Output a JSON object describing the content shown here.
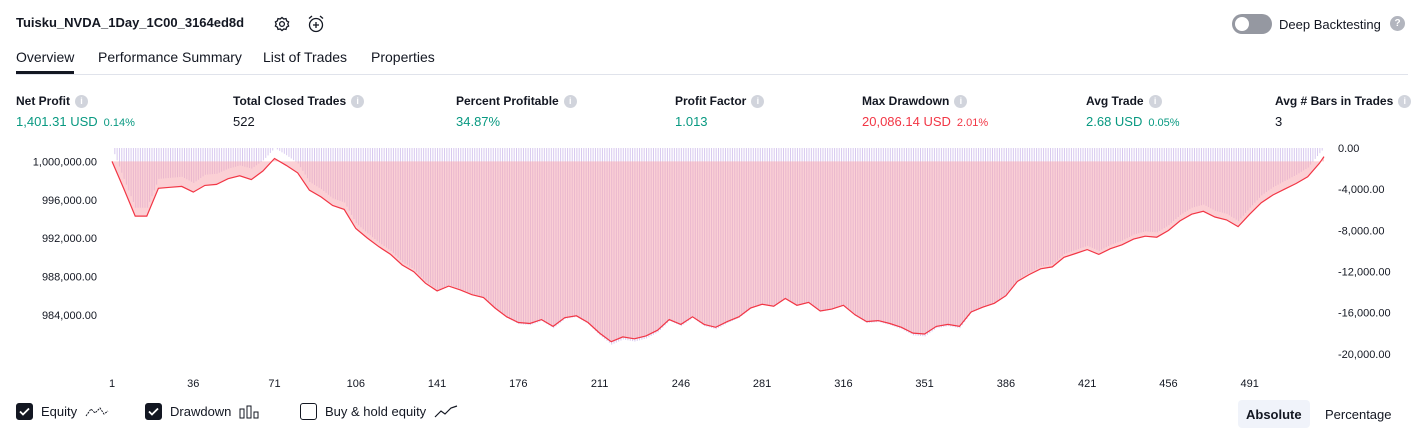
{
  "header": {
    "strategy_title": "Tuisku_NVDA_1Day_1C00_3164ed8d",
    "deep_backtesting_label": "Deep Backtesting",
    "help_glyph": "?"
  },
  "tabs": [
    "Overview",
    "Performance Summary",
    "List of Trades",
    "Properties"
  ],
  "metrics": [
    {
      "label": "Net Profit",
      "value": "1,401.31 USD",
      "pct": "0.14%",
      "color": "green"
    },
    {
      "label": "Total Closed Trades",
      "value": "522",
      "pct": "",
      "color": "dark"
    },
    {
      "label": "Percent Profitable",
      "value": "34.87%",
      "pct": "",
      "color": "green"
    },
    {
      "label": "Profit Factor",
      "value": "1.013",
      "pct": "",
      "color": "green"
    },
    {
      "label": "Max Drawdown",
      "value": "20,086.14 USD",
      "pct": "2.01%",
      "color": "red"
    },
    {
      "label": "Avg Trade",
      "value": "2.68 USD",
      "pct": "0.05%",
      "color": "green"
    },
    {
      "label": "Avg # Bars in Trades",
      "value": "3",
      "pct": "",
      "color": "dark"
    }
  ],
  "legend": {
    "equity": "Equity",
    "drawdown": "Drawdown",
    "buy_hold": "Buy & hold equity",
    "equity_checked": true,
    "drawdown_checked": true,
    "buy_hold_checked": false
  },
  "modes": {
    "absolute": "Absolute",
    "percentage": "Percentage",
    "selected": "absolute"
  },
  "colors": {
    "equity_line": "#f23645",
    "equity_fill": "#f7a9b3",
    "drawdown_bar": "#c9b6ea",
    "profit_green": "#089981"
  },
  "chart_data": {
    "type": "area",
    "x_ticks": [
      "1",
      "36",
      "71",
      "106",
      "141",
      "176",
      "211",
      "246",
      "281",
      "316",
      "351",
      "386",
      "421",
      "456",
      "491"
    ],
    "left_axis": {
      "ticks": [
        "1,000,000.00",
        "996,000.00",
        "992,000.00",
        "988,000.00",
        "984,000.00"
      ],
      "range": [
        979500,
        1001400
      ]
    },
    "right_axis": {
      "ticks": [
        "0.00",
        "-4,000.00",
        "-8,000.00",
        "-12,000.00",
        "-16,000.00",
        "-20,000.00"
      ],
      "range": [
        -20400,
        0
      ]
    },
    "x_range": [
      1,
      523
    ],
    "series": [
      {
        "name": "Equity",
        "x": [
          1,
          6,
          11,
          16,
          21,
          26,
          31,
          36,
          41,
          46,
          51,
          56,
          61,
          66,
          71,
          76,
          81,
          86,
          91,
          96,
          101,
          106,
          111,
          116,
          121,
          126,
          131,
          136,
          141,
          146,
          151,
          156,
          161,
          166,
          171,
          176,
          181,
          186,
          191,
          196,
          201,
          206,
          211,
          216,
          221,
          226,
          231,
          236,
          241,
          246,
          251,
          256,
          261,
          266,
          271,
          276,
          281,
          286,
          291,
          296,
          301,
          306,
          311,
          316,
          321,
          326,
          331,
          336,
          341,
          346,
          351,
          356,
          361,
          366,
          371,
          376,
          381,
          386,
          391,
          396,
          401,
          406,
          411,
          416,
          421,
          426,
          431,
          436,
          441,
          446,
          451,
          456,
          461,
          466,
          471,
          476,
          481,
          486,
          491,
          496,
          501,
          506,
          511,
          516,
          521,
          523
        ],
        "values": [
          1000000,
          997200,
          994300,
          994300,
          997200,
          997300,
          997400,
          996800,
          997500,
          997600,
          998200,
          998500,
          998100,
          999000,
          1000300,
          999600,
          998800,
          997000,
          996300,
          995400,
          995000,
          993000,
          992000,
          991100,
          990300,
          989200,
          988500,
          987300,
          986500,
          987000,
          986600,
          986100,
          985800,
          984700,
          983800,
          983200,
          983100,
          983500,
          982800,
          983700,
          983900,
          983200,
          982100,
          981200,
          981700,
          981500,
          981800,
          982400,
          983500,
          983000,
          983800,
          983000,
          982700,
          983300,
          983800,
          984700,
          985100,
          984900,
          985700,
          985000,
          985300,
          984400,
          984600,
          985000,
          984000,
          983300,
          983400,
          983100,
          982700,
          982100,
          982000,
          982800,
          983000,
          982800,
          984300,
          984800,
          985200,
          986000,
          987500,
          988200,
          988800,
          989000,
          990000,
          990400,
          990800,
          990300,
          990900,
          991300,
          991900,
          992200,
          992100,
          992800,
          993800,
          994500,
          994800,
          994200,
          993900,
          993200,
          994500,
          995700,
          996500,
          997100,
          997700,
          998400,
          999800,
          1000500
        ]
      },
      {
        "name": "Drawdown",
        "x": [
          1,
          6,
          11,
          16,
          21,
          26,
          31,
          36,
          41,
          46,
          51,
          56,
          61,
          66,
          71,
          76,
          81,
          86,
          91,
          96,
          101,
          106,
          111,
          116,
          121,
          126,
          131,
          136,
          141,
          146,
          151,
          156,
          161,
          166,
          171,
          176,
          181,
          186,
          191,
          196,
          201,
          206,
          211,
          216,
          221,
          226,
          231,
          236,
          241,
          246,
          251,
          256,
          261,
          266,
          271,
          276,
          281,
          286,
          291,
          296,
          301,
          306,
          311,
          316,
          321,
          326,
          331,
          336,
          341,
          346,
          351,
          356,
          361,
          366,
          371,
          376,
          381,
          386,
          391,
          396,
          401,
          406,
          411,
          416,
          421,
          426,
          431,
          436,
          441,
          446,
          451,
          456,
          461,
          466,
          471,
          476,
          481,
          486,
          491,
          496,
          501,
          506,
          511,
          516,
          521,
          523
        ],
        "values": [
          0,
          -3000,
          -5800,
          -5800,
          -3000,
          -2900,
          -2800,
          -3400,
          -2600,
          -2500,
          -2000,
          -1700,
          -2000,
          -1200,
          0,
          -700,
          -1500,
          -3300,
          -4000,
          -4900,
          -5300,
          -7300,
          -8300,
          -9200,
          -10000,
          -11100,
          -11800,
          -13000,
          -13800,
          -13300,
          -13700,
          -14200,
          -14500,
          -15600,
          -16500,
          -17100,
          -17200,
          -16800,
          -17500,
          -16600,
          -16400,
          -17100,
          -18200,
          -19100,
          -18600,
          -18800,
          -18500,
          -17900,
          -16800,
          -17300,
          -16500,
          -17300,
          -17600,
          -17000,
          -16500,
          -15600,
          -15200,
          -15400,
          -14600,
          -15300,
          -15000,
          -15900,
          -15700,
          -15300,
          -16300,
          -17000,
          -16900,
          -17200,
          -17600,
          -18200,
          -18300,
          -17500,
          -17300,
          -17500,
          -16000,
          -15500,
          -15100,
          -14300,
          -12800,
          -12100,
          -11500,
          -11300,
          -10300,
          -9900,
          -9500,
          -10000,
          -9400,
          -9000,
          -8400,
          -8100,
          -8200,
          -7500,
          -6500,
          -5800,
          -5500,
          -6100,
          -6400,
          -7100,
          -5800,
          -4600,
          -3800,
          -3200,
          -2600,
          -1900,
          -500,
          0
        ]
      }
    ],
    "xlabel": "",
    "ylabel": ""
  }
}
